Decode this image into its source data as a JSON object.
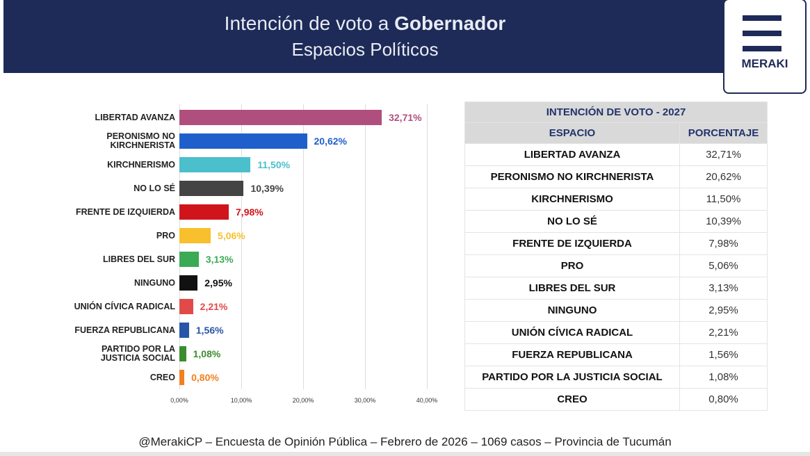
{
  "header": {
    "title": "Intención de voto a",
    "title_bold": "Gobernador",
    "subtitle": "Espacios Políticos"
  },
  "logo": {
    "text": "MERAKI"
  },
  "chart_data": {
    "type": "bar",
    "orientation": "horizontal",
    "categories": [
      "LIBERTAD AVANZA",
      "PERONISMO NO KIRCHNERISTA",
      "KIRCHNERISMO",
      "NO LO SÉ",
      "FRENTE DE IZQUIERDA",
      "PRO",
      "LIBRES DEL SUR",
      "NINGUNO",
      "UNIÓN CÍVICA RADICAL",
      "FUERZA REPUBLICANA",
      "PARTIDO POR LA JUSTICIA SOCIAL",
      "CREO"
    ],
    "values": [
      32.71,
      20.62,
      11.5,
      10.39,
      7.98,
      5.06,
      3.13,
      2.95,
      2.21,
      1.56,
      1.08,
      0.8
    ],
    "value_labels": [
      "32,71%",
      "20,62%",
      "11,50%",
      "10,39%",
      "7,98%",
      "5,06%",
      "3,13%",
      "2,95%",
      "2,21%",
      "1,56%",
      "1,08%",
      "0,80%"
    ],
    "colors": [
      "#b04f7e",
      "#1f5fcc",
      "#4bbfcc",
      "#444444",
      "#d0141c",
      "#f8c02c",
      "#3aaa55",
      "#111111",
      "#e24a4a",
      "#2756a8",
      "#3b8c2e",
      "#f08020"
    ],
    "xlim": [
      0,
      40
    ],
    "xticks": [
      {
        "value": 0,
        "label": "0,00%"
      },
      {
        "value": 10,
        "label": "10,00%"
      },
      {
        "value": 20,
        "label": "20,00%"
      },
      {
        "value": 30,
        "label": "30,00%"
      },
      {
        "value": 40,
        "label": "40,00%"
      }
    ],
    "grid": true
  },
  "table": {
    "title": "INTENCIÓN DE VOTO - 2027",
    "columns": [
      "ESPACIO",
      "PORCENTAJE"
    ],
    "rows": [
      [
        "LIBERTAD AVANZA",
        "32,71%"
      ],
      [
        "PERONISMO NO KIRCHNERISTA",
        "20,62%"
      ],
      [
        "KIRCHNERISMO",
        "11,50%"
      ],
      [
        "NO LO SÉ",
        "10,39%"
      ],
      [
        "FRENTE DE IZQUIERDA",
        "7,98%"
      ],
      [
        "PRO",
        "5,06%"
      ],
      [
        "LIBRES DEL SUR",
        "3,13%"
      ],
      [
        "NINGUNO",
        "2,95%"
      ],
      [
        "UNIÓN CÍVICA RADICAL",
        "2,21%"
      ],
      [
        "FUERZA REPUBLICANA",
        "1,56%"
      ],
      [
        "PARTIDO POR LA JUSTICIA SOCIAL",
        "1,08%"
      ],
      [
        "CREO",
        "0,80%"
      ]
    ]
  },
  "footer": "@MerakiCP – Encuesta de Opinión Pública – Febrero de 2026 – 1069 casos – Provincia de Tucumán"
}
